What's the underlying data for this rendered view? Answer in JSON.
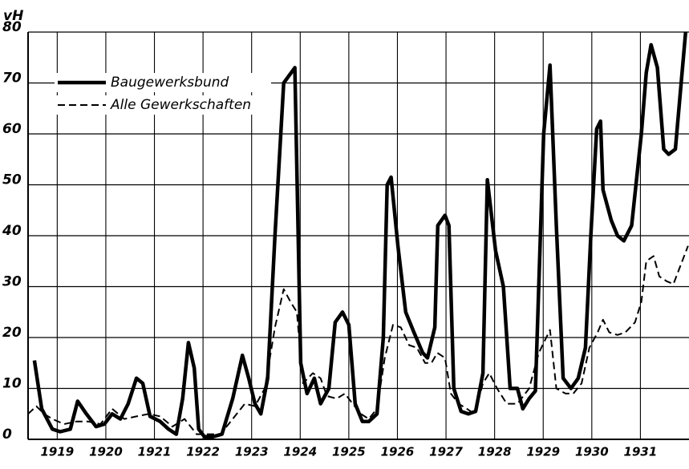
{
  "chart_data": {
    "type": "line",
    "y_label": "vH",
    "xlim": [
      1918.4,
      1932.0
    ],
    "xticks": [
      1919,
      1920,
      1921,
      1922,
      1923,
      1924,
      1925,
      1926,
      1927,
      1928,
      1929,
      1930,
      1931
    ],
    "ylim": [
      0,
      80
    ],
    "yticks": [
      0,
      10,
      20,
      30,
      40,
      50,
      60,
      70,
      80
    ],
    "grid": true,
    "legend": "upper left",
    "series": [
      {
        "name": "Baugewerksbund",
        "color": "#000000",
        "style": "solid",
        "x": [
          1918.53,
          1918.68,
          1918.9,
          1919.06,
          1919.27,
          1919.42,
          1919.6,
          1919.8,
          1919.97,
          1920.13,
          1920.3,
          1920.46,
          1920.63,
          1920.76,
          1920.91,
          1921.12,
          1921.29,
          1921.45,
          1921.58,
          1921.7,
          1921.82,
          1921.91,
          1922.03,
          1922.2,
          1922.39,
          1922.61,
          1922.81,
          1922.94,
          1923.07,
          1923.19,
          1923.33,
          1923.48,
          1923.66,
          1923.89,
          1924.01,
          1924.14,
          1924.29,
          1924.42,
          1924.59,
          1924.72,
          1924.87,
          1925.0,
          1925.13,
          1925.28,
          1925.41,
          1925.58,
          1925.71,
          1925.79,
          1925.87,
          1926.01,
          1926.17,
          1926.34,
          1926.52,
          1926.62,
          1926.77,
          1926.83,
          1926.98,
          1927.06,
          1927.16,
          1927.31,
          1927.46,
          1927.61,
          1927.76,
          1927.85,
          1928.02,
          1928.18,
          1928.32,
          1928.47,
          1928.58,
          1928.71,
          1928.84,
          1929.01,
          1929.14,
          1929.27,
          1929.41,
          1929.57,
          1929.72,
          1929.87,
          1929.98,
          1930.1,
          1930.18,
          1930.23,
          1930.4,
          1930.53,
          1930.66,
          1930.82,
          1931.02,
          1931.12,
          1931.22,
          1931.35,
          1931.48,
          1931.58,
          1931.72,
          1931.93
        ],
        "values": [
          15.5,
          6,
          2,
          1.5,
          2,
          7.5,
          5,
          2.5,
          3,
          5,
          4,
          7,
          12,
          11,
          4.5,
          3.5,
          2,
          1,
          8,
          19,
          14,
          2,
          0.5,
          0.5,
          1,
          8,
          16.5,
          12,
          7,
          5,
          12,
          40,
          70,
          73,
          15,
          9,
          12,
          7,
          10,
          23,
          25,
          22.5,
          7,
          3.5,
          3.5,
          5,
          20,
          50,
          51.5,
          38,
          25,
          21,
          17,
          16,
          22,
          42,
          44,
          42,
          10,
          5.5,
          5,
          5.5,
          13,
          51,
          37,
          30,
          10,
          10,
          6,
          8,
          9.5,
          60,
          73.5,
          42,
          12,
          10,
          12,
          18,
          40,
          61,
          62.5,
          49,
          43,
          40,
          39,
          42,
          60,
          72,
          77.5,
          73,
          57,
          56,
          57,
          80
        ]
      },
      {
        "name": "Alle Gewerkschaften",
        "color": "#000000",
        "style": "dashed",
        "x": [
          1918.4,
          1918.57,
          1918.73,
          1918.9,
          1919.14,
          1919.39,
          1919.64,
          1919.89,
          1920.13,
          1920.38,
          1920.63,
          1920.88,
          1921.12,
          1921.37,
          1921.62,
          1921.87,
          1922.11,
          1922.36,
          1922.61,
          1922.86,
          1923.07,
          1923.27,
          1923.48,
          1923.66,
          1923.8,
          1923.93,
          1924.06,
          1924.26,
          1924.42,
          1924.55,
          1924.75,
          1924.92,
          1925.08,
          1925.25,
          1925.41,
          1925.58,
          1925.74,
          1925.91,
          1926.07,
          1926.24,
          1926.4,
          1926.57,
          1926.7,
          1926.82,
          1926.98,
          1927.1,
          1927.26,
          1927.43,
          1927.59,
          1927.76,
          1927.89,
          1928.05,
          1928.25,
          1928.47,
          1928.71,
          1928.91,
          1929.14,
          1929.27,
          1929.46,
          1929.62,
          1929.79,
          1929.95,
          1930.12,
          1930.23,
          1930.36,
          1930.53,
          1930.69,
          1930.89,
          1931.02,
          1931.12,
          1931.27,
          1931.39,
          1931.55,
          1931.68,
          1931.98
        ],
        "values": [
          5,
          6.5,
          5,
          4,
          3,
          3.5,
          3.5,
          3,
          6,
          4,
          4.5,
          5,
          4.5,
          2.5,
          4,
          1,
          1,
          1,
          4,
          7,
          6.5,
          10,
          22,
          29.5,
          27,
          25,
          11,
          13,
          12,
          8.5,
          8,
          9,
          7,
          5,
          4,
          6,
          16,
          22.5,
          22,
          18.5,
          18,
          15,
          15,
          17,
          16,
          9,
          7,
          6,
          5,
          11,
          13,
          10,
          7,
          7,
          10,
          17,
          21.5,
          10,
          9,
          9,
          11,
          18,
          21,
          23.5,
          21,
          20.5,
          21,
          23,
          27,
          35,
          36,
          32,
          31,
          30.5,
          38
        ]
      }
    ]
  }
}
